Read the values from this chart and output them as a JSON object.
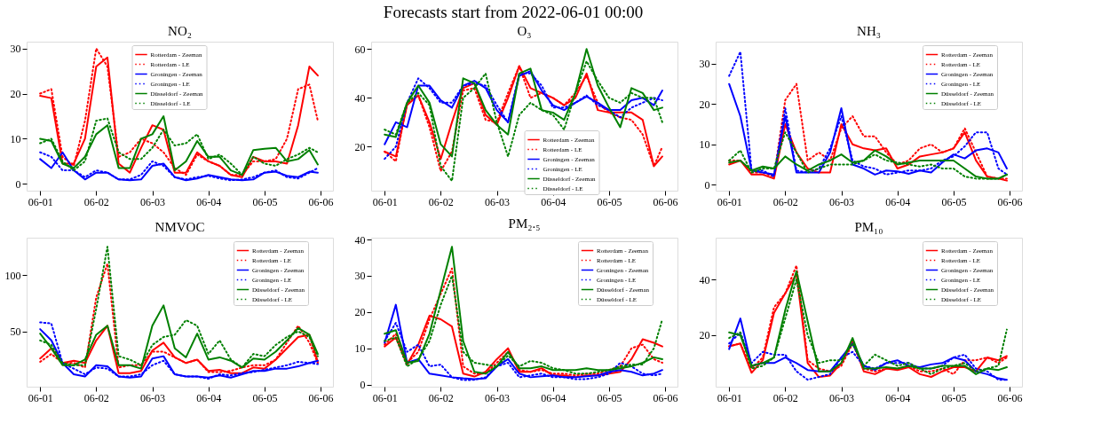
{
  "chart_data": [
    {
      "type": "line",
      "title": "NO₂",
      "annotations": [
        "Forecasts start from 2022-06-01 00:00"
      ],
      "legend": "top",
      "xlim": [
        "2022-05-31T18:14",
        "2022-06-06T05:17"
      ],
      "xticks": [
        {
          "value": "2022-06-01",
          "label": "06-01"
        },
        {
          "value": "2022-06-02",
          "label": "06-02"
        },
        {
          "value": "2022-06-03",
          "label": "06-03"
        },
        {
          "value": "2022-06-04",
          "label": "06-04"
        },
        {
          "value": "2022-06-05",
          "label": "06-05"
        },
        {
          "value": "2022-06-06",
          "label": "06-06"
        }
      ],
      "ylim": [
        -1.5,
        31.5
      ],
      "yticks": [
        0,
        10,
        20,
        30
      ],
      "x": [
        "2022-06-01T00:00",
        "2022-06-01T04:48",
        "2022-06-01T09:36",
        "2022-06-01T14:24",
        "2022-06-01T19:12",
        "2022-06-02T00:00",
        "2022-06-02T04:48",
        "2022-06-02T09:36",
        "2022-06-02T14:24",
        "2022-06-02T19:12",
        "2022-06-03T00:00",
        "2022-06-03T04:48",
        "2022-06-03T09:36",
        "2022-06-03T14:24",
        "2022-06-03T19:12",
        "2022-06-04T00:00",
        "2022-06-04T04:48",
        "2022-06-04T09:36",
        "2022-06-04T14:24",
        "2022-06-04T19:12",
        "2022-06-05T00:00",
        "2022-06-05T04:48",
        "2022-06-05T09:36",
        "2022-06-05T14:24",
        "2022-06-05T19:12",
        "2022-06-05T22:48"
      ],
      "series": [
        {
          "name": "Rotterdam - Zeeman",
          "color": "#ff0000",
          "line_style": "solid",
          "values": [
            19.5,
            19,
            4.5,
            4.5,
            10,
            26,
            28,
            4.5,
            2.5,
            8,
            13,
            12,
            2.5,
            2.5,
            7,
            5,
            4,
            2,
            1.5,
            6,
            5,
            5,
            4.5,
            13,
            26,
            24
          ]
        },
        {
          "name": "Rotterdam - LE",
          "color": "#ff0000",
          "line_style": "dotted",
          "values": [
            20,
            21,
            6,
            4,
            14,
            30,
            26,
            6,
            7,
            10,
            9,
            7,
            3.5,
            2,
            6.5,
            5,
            4,
            2,
            2,
            5,
            5,
            5.5,
            10,
            21,
            22,
            14
          ]
        },
        {
          "name": "Groningen - Zeeman",
          "color": "#0000ff",
          "line_style": "solid",
          "values": [
            5.5,
            3.5,
            7,
            3,
            1,
            2.5,
            2.5,
            1,
            0.8,
            1,
            4,
            4.5,
            1.5,
            0.8,
            1.2,
            2,
            1.5,
            1,
            0.8,
            1,
            2.5,
            2.7,
            1.8,
            1.5,
            2.7,
            2.5
          ]
        },
        {
          "name": "Groningen - LE",
          "color": "#0000ff",
          "line_style": "dotted",
          "values": [
            7,
            6,
            3,
            3,
            1.5,
            3,
            2.5,
            1,
            1,
            2,
            5,
            4,
            1.5,
            1,
            1.5,
            1.8,
            1.2,
            0.8,
            1,
            1.5,
            2.5,
            3,
            1.5,
            1.2,
            2.5,
            3.5
          ]
        },
        {
          "name": "Düsseldorf - Zeeman",
          "color": "#008000",
          "line_style": "solid",
          "values": [
            10,
            9.5,
            4.5,
            3.5,
            6,
            11,
            13,
            3.5,
            3.5,
            10,
            11,
            15,
            3,
            5,
            9.5,
            6,
            6,
            3,
            2,
            7.5,
            7.8,
            8,
            5,
            5.5,
            7.5,
            4.3
          ]
        },
        {
          "name": "Düsseldorf - LE",
          "color": "#008000",
          "line_style": "dotted",
          "values": [
            9,
            10,
            5,
            3,
            5,
            14,
            14.5,
            7,
            5.5,
            5.5,
            8,
            12,
            8.5,
            9,
            11,
            5.5,
            6.5,
            4.5,
            2,
            6,
            4.5,
            4,
            5.5,
            6.5,
            8,
            7
          ]
        }
      ]
    },
    {
      "type": "line",
      "title": "O₃",
      "legend": "bottom",
      "xlim": [
        "2022-05-31T18:14",
        "2022-06-06T05:17"
      ],
      "xticks": [
        {
          "value": "2022-06-01",
          "label": "06-01"
        },
        {
          "value": "2022-06-02",
          "label": "06-02"
        },
        {
          "value": "2022-06-03",
          "label": "06-03"
        },
        {
          "value": "2022-06-04",
          "label": "06-04"
        },
        {
          "value": "2022-06-05",
          "label": "06-05"
        },
        {
          "value": "2022-06-06",
          "label": "06-06"
        }
      ],
      "ylim": [
        2,
        63
      ],
      "yticks": [
        20,
        40,
        60
      ],
      "x": [
        "2022-06-01T00:00",
        "2022-06-01T04:48",
        "2022-06-01T09:36",
        "2022-06-01T14:24",
        "2022-06-01T19:12",
        "2022-06-02T00:00",
        "2022-06-02T04:48",
        "2022-06-02T09:36",
        "2022-06-02T14:24",
        "2022-06-02T19:12",
        "2022-06-03T00:00",
        "2022-06-03T04:48",
        "2022-06-03T09:36",
        "2022-06-03T14:24",
        "2022-06-03T19:12",
        "2022-06-04T00:00",
        "2022-06-04T04:48",
        "2022-06-04T09:36",
        "2022-06-04T14:24",
        "2022-06-04T19:12",
        "2022-06-05T00:00",
        "2022-06-05T04:48",
        "2022-06-05T09:36",
        "2022-06-05T14:24",
        "2022-06-05T19:12",
        "2022-06-05T22:48"
      ],
      "series": [
        {
          "name": "Rotterdam - Zeeman",
          "color": "#ff0000",
          "line_style": "solid",
          "values": [
            18,
            16,
            37,
            41,
            30,
            15,
            30,
            44,
            46,
            33,
            29,
            40,
            53,
            44,
            42,
            40,
            37,
            40,
            50,
            35,
            34,
            34,
            34,
            31,
            12,
            16
          ]
        },
        {
          "name": "Rotterdam - LE",
          "color": "#ff0000",
          "line_style": "dotted",
          "values": [
            18,
            14,
            38,
            41,
            28,
            10,
            18,
            43,
            44,
            31,
            30,
            42,
            53,
            40,
            42,
            40,
            37,
            42,
            49,
            38,
            34,
            32,
            31,
            25,
            12,
            20
          ]
        },
        {
          "name": "Groningen - Zeeman",
          "color": "#0000ff",
          "line_style": "solid",
          "values": [
            21,
            30,
            28,
            45,
            45,
            39,
            36,
            45,
            47,
            44,
            35,
            30,
            49,
            51,
            43,
            37,
            35,
            38,
            40.5,
            38,
            35,
            35,
            39,
            40,
            37,
            43
          ]
        },
        {
          "name": "Groningen - LE",
          "color": "#0000ff",
          "line_style": "dotted",
          "values": [
            15,
            20,
            38,
            48,
            44,
            38,
            38,
            45,
            46,
            45,
            37,
            30,
            50,
            50,
            45,
            36,
            36,
            38,
            41,
            37,
            35,
            32,
            36,
            38,
            40,
            39
          ]
        },
        {
          "name": "Düsseldorf - Zeeman",
          "color": "#008000",
          "line_style": "solid",
          "values": [
            25,
            24,
            38,
            45,
            38,
            21,
            16,
            48,
            46,
            35,
            29,
            25,
            50,
            52,
            35,
            34,
            31,
            42,
            60,
            45,
            36,
            28,
            44,
            42,
            35,
            36
          ]
        },
        {
          "name": "Düsseldorf - LE",
          "color": "#008000",
          "line_style": "dotted",
          "values": [
            27,
            25,
            38,
            42,
            37,
            12,
            6,
            40,
            44,
            50,
            30,
            16,
            33,
            38,
            35,
            33,
            27,
            42,
            55,
            47,
            40,
            38,
            42,
            40,
            40,
            30
          ]
        }
      ]
    },
    {
      "type": "line",
      "title": "NH₃",
      "legend": "top right",
      "xlim": [
        "2022-05-31T18:14",
        "2022-06-06T05:17"
      ],
      "xticks": [
        {
          "value": "2022-06-01",
          "label": "06-01"
        },
        {
          "value": "2022-06-02",
          "label": "06-02"
        },
        {
          "value": "2022-06-03",
          "label": "06-03"
        },
        {
          "value": "2022-06-04",
          "label": "06-04"
        },
        {
          "value": "2022-06-05",
          "label": "06-05"
        },
        {
          "value": "2022-06-06",
          "label": "06-06"
        }
      ],
      "ylim": [
        -1.5,
        35.5
      ],
      "yticks": [
        0,
        10,
        20,
        30
      ],
      "x": [
        "2022-06-01T00:00",
        "2022-06-01T04:48",
        "2022-06-01T09:36",
        "2022-06-01T14:24",
        "2022-06-01T19:12",
        "2022-06-02T00:00",
        "2022-06-02T04:48",
        "2022-06-02T09:36",
        "2022-06-02T14:24",
        "2022-06-02T19:12",
        "2022-06-03T00:00",
        "2022-06-03T04:48",
        "2022-06-03T09:36",
        "2022-06-03T14:24",
        "2022-06-03T19:12",
        "2022-06-04T00:00",
        "2022-06-04T04:48",
        "2022-06-04T09:36",
        "2022-06-04T14:24",
        "2022-06-04T19:12",
        "2022-06-05T00:00",
        "2022-06-05T04:48",
        "2022-06-05T09:36",
        "2022-06-05T14:24",
        "2022-06-05T19:12",
        "2022-06-05T22:48"
      ],
      "series": [
        {
          "name": "Rotterdam - Zeeman",
          "color": "#ff0000",
          "line_style": "solid",
          "values": [
            5,
            6,
            2.5,
            2.5,
            1.5,
            15,
            8,
            4,
            3,
            3,
            15,
            10,
            9,
            8.5,
            9,
            4,
            5,
            7,
            7.5,
            8,
            9,
            13,
            6,
            2,
            1.5,
            1
          ]
        },
        {
          "name": "Rotterdam - LE",
          "color": "#ff0000",
          "line_style": "dotted",
          "values": [
            6,
            6,
            3,
            3,
            2,
            21,
            25,
            6,
            8,
            6,
            14,
            17,
            12,
            12,
            8,
            5,
            6,
            9,
            10,
            8,
            9,
            14,
            8,
            2,
            1.5,
            1.5
          ]
        },
        {
          "name": "Groningen - Zeeman",
          "color": "#0000ff",
          "line_style": "solid",
          "values": [
            25,
            17,
            3.5,
            3,
            2.5,
            17,
            3,
            3,
            3,
            8,
            19,
            5,
            4,
            2.5,
            3.5,
            3.3,
            2.7,
            3.5,
            3,
            5.5,
            7.5,
            6.5,
            8.5,
            9,
            8,
            4
          ]
        },
        {
          "name": "Groningen - LE",
          "color": "#0000ff",
          "line_style": "dotted",
          "values": [
            27,
            33,
            3.5,
            3.5,
            2,
            19,
            3.5,
            3,
            4,
            9,
            17,
            6,
            4.5,
            4,
            2.5,
            3,
            3.5,
            3.5,
            4,
            6,
            7,
            9.5,
            13,
            13,
            4,
            2.5
          ]
        },
        {
          "name": "Düsseldorf - Zeeman",
          "color": "#008000",
          "line_style": "solid",
          "values": [
            5.5,
            6,
            3.5,
            4.5,
            4,
            7,
            5,
            3.5,
            5,
            6,
            7.5,
            5.5,
            6,
            8.5,
            7,
            5,
            5.5,
            6,
            6,
            6,
            6,
            4,
            2,
            1.5,
            1.5,
            2.5
          ]
        },
        {
          "name": "Düsseldorf - LE",
          "color": "#008000",
          "line_style": "dotted",
          "values": [
            6,
            8.5,
            3,
            4,
            4,
            13,
            8,
            3,
            4,
            5,
            5,
            5,
            6,
            7.5,
            6,
            5.5,
            5,
            4.5,
            5,
            4,
            4,
            2,
            1.5,
            1.5,
            1.5,
            2.5
          ]
        }
      ]
    },
    {
      "type": "line",
      "title": "NMVOC",
      "legend": "top right",
      "xlim": [
        "2022-05-31T18:14",
        "2022-06-06T05:17"
      ],
      "xticks": [
        {
          "value": "2022-06-01",
          "label": "06-01"
        },
        {
          "value": "2022-06-02",
          "label": "06-02"
        },
        {
          "value": "2022-06-03",
          "label": "06-03"
        },
        {
          "value": "2022-06-04",
          "label": "06-04"
        },
        {
          "value": "2022-06-05",
          "label": "06-05"
        },
        {
          "value": "2022-06-06",
          "label": "06-06"
        }
      ],
      "ylim": [
        1,
        133
      ],
      "yticks": [
        50,
        100
      ],
      "x": [
        "2022-06-01T00:00",
        "2022-06-01T04:48",
        "2022-06-01T09:36",
        "2022-06-01T14:24",
        "2022-06-01T19:12",
        "2022-06-02T00:00",
        "2022-06-02T04:48",
        "2022-06-02T09:36",
        "2022-06-02T14:24",
        "2022-06-02T19:12",
        "2022-06-03T00:00",
        "2022-06-03T04:48",
        "2022-06-03T09:36",
        "2022-06-03T14:24",
        "2022-06-03T19:12",
        "2022-06-04T00:00",
        "2022-06-04T04:48",
        "2022-06-04T09:36",
        "2022-06-04T14:24",
        "2022-06-04T19:12",
        "2022-06-05T00:00",
        "2022-06-05T04:48",
        "2022-06-05T09:36",
        "2022-06-05T14:24",
        "2022-06-05T19:12",
        "2022-06-05T22:48"
      ],
      "series": [
        {
          "name": "Rotterdam - Zeeman",
          "color": "#ff0000",
          "line_style": "solid",
          "values": [
            26,
            35,
            22,
            24,
            22,
            42,
            55,
            13,
            13,
            15,
            33,
            40,
            27,
            22,
            25,
            15,
            16,
            13,
            13,
            18,
            17,
            25,
            35,
            45,
            47,
            23
          ]
        },
        {
          "name": "Rotterdam - LE",
          "color": "#ff0000",
          "line_style": "dotted",
          "values": [
            23,
            30,
            22,
            22,
            18,
            80,
            110,
            18,
            20,
            20,
            32,
            32,
            27,
            22,
            25,
            14,
            14,
            15,
            18,
            20,
            20,
            25,
            40,
            55,
            40,
            22
          ]
        },
        {
          "name": "Groningen - Zeeman",
          "color": "#0000ff",
          "line_style": "solid",
          "values": [
            52,
            42,
            22,
            12,
            10,
            20,
            19,
            10,
            9,
            10,
            26,
            28,
            12,
            10,
            10,
            9,
            11,
            9,
            12,
            15,
            15,
            17,
            17,
            19,
            22,
            24
          ]
        },
        {
          "name": "Groningen - LE",
          "color": "#0000ff",
          "line_style": "dotted",
          "values": [
            58,
            57,
            22,
            17,
            12,
            18,
            17,
            10,
            10,
            12,
            20,
            24,
            12,
            10,
            10,
            8,
            12,
            11,
            13,
            14,
            16,
            18,
            20,
            23,
            22,
            21
          ]
        },
        {
          "name": "Düsseldorf - Zeeman",
          "color": "#008000",
          "line_style": "solid",
          "values": [
            48,
            35,
            20,
            20,
            25,
            47,
            55,
            20,
            20,
            17,
            55,
            73,
            35,
            27,
            48,
            25,
            27,
            24,
            18,
            26,
            25,
            32,
            42,
            53,
            47,
            30
          ]
        },
        {
          "name": "Düsseldorf - LE",
          "color": "#008000",
          "line_style": "dotted",
          "values": [
            42,
            38,
            22,
            20,
            20,
            70,
            125,
            28,
            25,
            20,
            38,
            45,
            47,
            60,
            55,
            30,
            42,
            25,
            18,
            30,
            28,
            38,
            45,
            50,
            45,
            28
          ]
        }
      ]
    },
    {
      "type": "line",
      "title": "PM₂.₅",
      "legend": "top right",
      "xlim": [
        "2022-05-31T18:14",
        "2022-06-06T05:17"
      ],
      "xticks": [
        {
          "value": "2022-06-01",
          "label": "06-01"
        },
        {
          "value": "2022-06-02",
          "label": "06-02"
        },
        {
          "value": "2022-06-03",
          "label": "06-03"
        },
        {
          "value": "2022-06-04",
          "label": "06-04"
        },
        {
          "value": "2022-06-05",
          "label": "06-05"
        },
        {
          "value": "2022-06-06",
          "label": "06-06"
        }
      ],
      "ylim": [
        -0.6,
        40.5
      ],
      "yticks": [
        0,
        10,
        20,
        30,
        40
      ],
      "x": [
        "2022-06-01T00:00",
        "2022-06-01T04:48",
        "2022-06-01T09:36",
        "2022-06-01T14:24",
        "2022-06-01T19:12",
        "2022-06-02T00:00",
        "2022-06-02T04:48",
        "2022-06-02T09:36",
        "2022-06-02T14:24",
        "2022-06-02T19:12",
        "2022-06-03T00:00",
        "2022-06-03T04:48",
        "2022-06-03T09:36",
        "2022-06-03T14:24",
        "2022-06-03T19:12",
        "2022-06-04T00:00",
        "2022-06-04T04:48",
        "2022-06-04T09:36",
        "2022-06-04T14:24",
        "2022-06-04T19:12",
        "2022-06-05T00:00",
        "2022-06-05T04:48",
        "2022-06-05T09:36",
        "2022-06-05T14:24",
        "2022-06-05T19:12",
        "2022-06-05T22:48"
      ],
      "series": [
        {
          "name": "Rotterdam - Zeeman",
          "color": "#ff0000",
          "line_style": "solid",
          "values": [
            10.5,
            13,
            5.5,
            11,
            19,
            18,
            16,
            3,
            2.2,
            3.5,
            7,
            10,
            3.5,
            3.5,
            4.5,
            2.5,
            2.5,
            2,
            2.5,
            2.5,
            3,
            3.5,
            7,
            12.5,
            11.5,
            10.5
          ]
        },
        {
          "name": "Rotterdam - LE",
          "color": "#ff0000",
          "line_style": "dotted",
          "values": [
            11,
            14,
            6,
            9,
            18,
            25,
            32,
            5,
            3,
            3,
            6,
            9,
            4,
            3.5,
            4,
            3,
            3,
            2.5,
            3,
            3,
            4,
            5,
            10,
            11,
            7,
            6
          ]
        },
        {
          "name": "Groningen - Zeeman",
          "color": "#0000ff",
          "line_style": "solid",
          "values": [
            11.5,
            22,
            6,
            7,
            3,
            2.5,
            2,
            1.7,
            1.5,
            1.7,
            5,
            7,
            3,
            2,
            2.3,
            2.5,
            2,
            2,
            2.3,
            2.5,
            3.5,
            4,
            3.5,
            2.5,
            3,
            4
          ]
        },
        {
          "name": "Groningen - LE",
          "color": "#0000ff",
          "line_style": "dotted",
          "values": [
            12,
            17,
            9,
            11,
            5,
            5.5,
            2,
            1.2,
            1.3,
            2,
            5,
            6,
            2,
            2.5,
            3,
            2,
            2,
            1.5,
            1.5,
            2,
            3,
            6,
            5,
            3,
            2.5,
            3
          ]
        },
        {
          "name": "Düsseldorf - Zeeman",
          "color": "#008000",
          "line_style": "solid",
          "values": [
            14,
            15,
            6,
            6.5,
            14,
            26,
            38,
            12,
            3.5,
            3,
            5,
            9,
            4.5,
            4.5,
            5,
            4,
            4,
            4,
            4.5,
            4,
            4,
            4.5,
            5,
            6,
            7.5,
            7
          ]
        },
        {
          "name": "Düsseldorf - LE",
          "color": "#008000",
          "line_style": "dotted",
          "values": [
            12,
            13,
            5,
            7,
            12,
            22,
            30,
            9,
            6,
            5.5,
            5,
            8,
            5,
            6.5,
            6,
            4.5,
            4,
            3,
            3,
            3.5,
            4,
            5,
            5.5,
            5.5,
            10,
            18
          ]
        }
      ]
    },
    {
      "type": "line",
      "title": "PM₁₀",
      "legend": "top right",
      "xlim": [
        "2022-05-31T18:14",
        "2022-06-06T05:17"
      ],
      "xticks": [
        {
          "value": "2022-06-01",
          "label": "06-01"
        },
        {
          "value": "2022-06-02",
          "label": "06-02"
        },
        {
          "value": "2022-06-03",
          "label": "06-03"
        },
        {
          "value": "2022-06-04",
          "label": "06-04"
        },
        {
          "value": "2022-06-05",
          "label": "06-05"
        },
        {
          "value": "2022-06-06",
          "label": "06-06"
        }
      ],
      "ylim": [
        1.5,
        55
      ],
      "yticks": [
        20,
        40
      ],
      "x": [
        "2022-06-01T00:00",
        "2022-06-01T04:48",
        "2022-06-01T09:36",
        "2022-06-01T14:24",
        "2022-06-01T19:12",
        "2022-06-02T00:00",
        "2022-06-02T04:48",
        "2022-06-02T09:36",
        "2022-06-02T14:24",
        "2022-06-02T19:12",
        "2022-06-03T00:00",
        "2022-06-03T04:48",
        "2022-06-03T09:36",
        "2022-06-03T14:24",
        "2022-06-03T19:12",
        "2022-06-04T00:00",
        "2022-06-04T04:48",
        "2022-06-04T09:36",
        "2022-06-04T14:24",
        "2022-06-04T19:12",
        "2022-06-05T00:00",
        "2022-06-05T04:48",
        "2022-06-05T09:36",
        "2022-06-05T14:24",
        "2022-06-05T19:12",
        "2022-06-05T22:48"
      ],
      "series": [
        {
          "name": "Rotterdam - Zeeman",
          "color": "#ff0000",
          "line_style": "solid",
          "values": [
            16,
            17,
            6.5,
            11,
            28,
            35,
            42,
            10,
            5,
            5.5,
            10,
            18,
            7,
            6,
            8,
            7.5,
            8.5,
            6,
            5,
            7,
            8.5,
            8.5,
            7,
            12,
            11,
            12.5
          ]
        },
        {
          "name": "Rotterdam - LE",
          "color": "#ff0000",
          "line_style": "dotted",
          "values": [
            16,
            17,
            8,
            12,
            30,
            35,
            45,
            11,
            8,
            7,
            9,
            17,
            8,
            7,
            8,
            8,
            9,
            7,
            7,
            8,
            6,
            11,
            11,
            12,
            10,
            12
          ]
        },
        {
          "name": "Groningen - Zeeman",
          "color": "#0000ff",
          "line_style": "solid",
          "values": [
            15,
            26,
            9,
            10,
            10,
            12,
            10,
            7.5,
            7,
            7,
            12,
            17,
            9,
            7.5,
            10,
            11,
            9,
            8.5,
            9.5,
            10,
            12,
            11,
            7,
            6,
            4.5,
            4
          ]
        },
        {
          "name": "Groningen - LE",
          "color": "#0000ff",
          "line_style": "dotted",
          "values": [
            17,
            21,
            10,
            14,
            13,
            13,
            7,
            4,
            5,
            6,
            12,
            14,
            9,
            8,
            10,
            10,
            10,
            8,
            8,
            9,
            12,
            13,
            8,
            7,
            4,
            4
          ]
        },
        {
          "name": "Düsseldorf - Zeeman",
          "color": "#008000",
          "line_style": "solid",
          "values": [
            21,
            20,
            9,
            10,
            12,
            29,
            43,
            25,
            7,
            7,
            10,
            19,
            8,
            8,
            8.5,
            8,
            9,
            8,
            8,
            9,
            9,
            9,
            6,
            8,
            7.5,
            8.5
          ]
        },
        {
          "name": "Düsseldorf - LE",
          "color": "#008000",
          "line_style": "dotted",
          "values": [
            19,
            21,
            8,
            9,
            12,
            26,
            40,
            20,
            10,
            11,
            11,
            17,
            9,
            13,
            11,
            9,
            10,
            8,
            6,
            8,
            9,
            10,
            7,
            8,
            9,
            22
          ]
        }
      ]
    }
  ]
}
